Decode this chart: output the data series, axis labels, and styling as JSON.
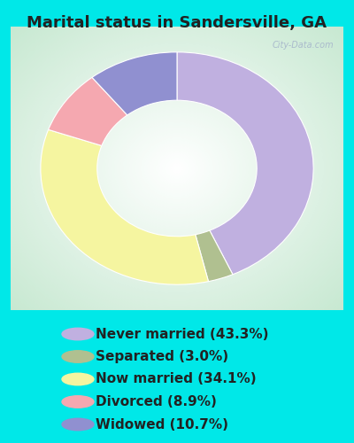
{
  "title": "Marital status in Sandersville, GA",
  "slices": [
    {
      "label": "Never married (43.3%)",
      "value": 43.3,
      "color": "#c0b0e0"
    },
    {
      "label": "Separated (3.0%)",
      "value": 3.0,
      "color": "#b0c090"
    },
    {
      "label": "Now married (34.1%)",
      "value": 34.1,
      "color": "#f5f5a0"
    },
    {
      "label": "Divorced (8.9%)",
      "value": 8.9,
      "color": "#f5a8b0"
    },
    {
      "label": "Widowed (10.7%)",
      "value": 10.7,
      "color": "#9090d0"
    }
  ],
  "outer_background": "#00e8e8",
  "chart_bg_center": "#ffffff",
  "chart_bg_edge": "#c8e8d0",
  "title_fontsize": 13,
  "legend_fontsize": 11,
  "start_angle": 90,
  "watermark": "City-Data.com",
  "watermark_color": "#aabbcc"
}
